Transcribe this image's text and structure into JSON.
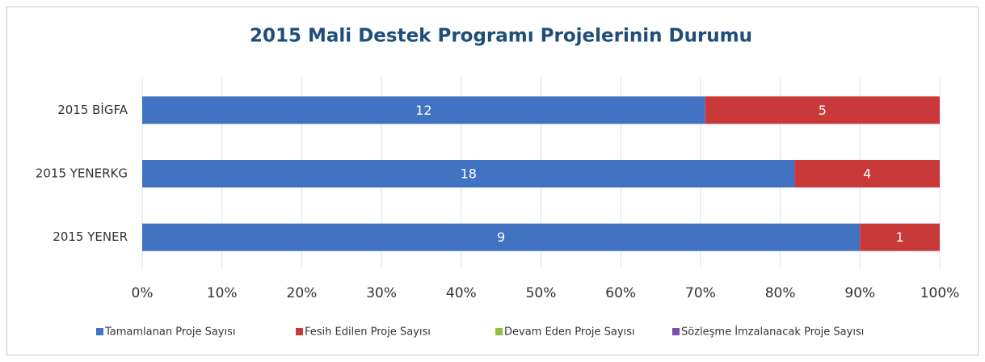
{
  "chart_data": {
    "type": "bar",
    "orientation": "horizontal",
    "stacked": "percent",
    "title": "2015 Mali Destek Programı Projelerinin Durumu",
    "categories": [
      "2015 BİGFA",
      "2015 YENERKG",
      "2015 YENER"
    ],
    "series": [
      {
        "name": "Tamamlanan Proje Sayısı",
        "color": "#4173c2",
        "values": [
          12,
          18,
          9
        ]
      },
      {
        "name": "Fesih Edilen Proje Sayısı",
        "color": "#c9393a",
        "values": [
          5,
          4,
          1
        ]
      },
      {
        "name": "Devam Eden Proje Sayısı",
        "color": "#8dc03f",
        "values": [
          0,
          0,
          0
        ]
      },
      {
        "name": "Sözleşme İmzalanacak Proje Sayısı",
        "color": "#7c50a6",
        "values": [
          0,
          0,
          0
        ]
      }
    ],
    "xlim": [
      0,
      100
    ],
    "xticks": [
      {
        "value": 0,
        "label": "0%"
      },
      {
        "value": 10,
        "label": "10%"
      },
      {
        "value": 20,
        "label": "20%"
      },
      {
        "value": 30,
        "label": "30%"
      },
      {
        "value": 40,
        "label": "40%"
      },
      {
        "value": 50,
        "label": "50%"
      },
      {
        "value": 60,
        "label": "60%"
      },
      {
        "value": 70,
        "label": "70%"
      },
      {
        "value": 80,
        "label": "80%"
      },
      {
        "value": 90,
        "label": "90%"
      },
      {
        "value": 100,
        "label": "100%"
      }
    ],
    "grid": true,
    "legend": "bottom"
  }
}
